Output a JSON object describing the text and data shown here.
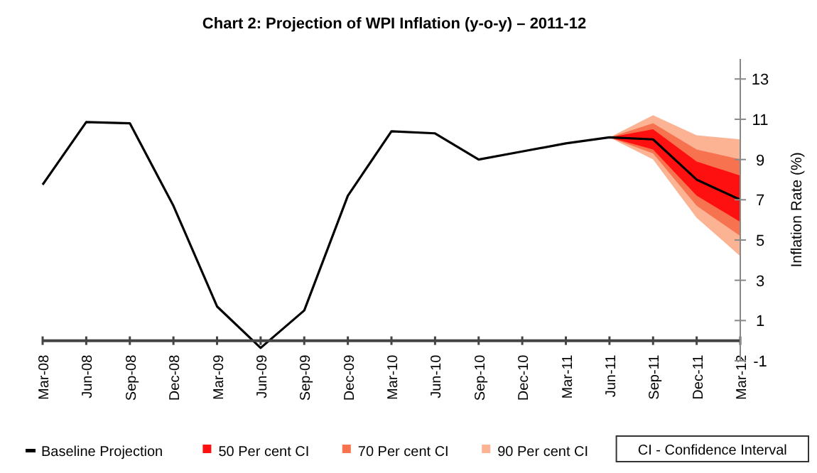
{
  "chart_data": {
    "type": "line",
    "title": "Chart 2: Projection of  WPI Inflation (y-o-y) – 2011-12",
    "ylabel": "Inflation Rate (%)",
    "categories": [
      "Mar-08",
      "Jun-08",
      "Sep-08",
      "Dec-08",
      "Mar-09",
      "Jun-09",
      "Sep-09",
      "Dec-09",
      "Mar-10",
      "Jun-10",
      "Sep-10",
      "Dec-10",
      "Mar-11",
      "Jun-11",
      "Sep-11",
      "Dec-11",
      "Mar-12"
    ],
    "series": [
      {
        "name": "Baseline Projection",
        "color": "#000000",
        "values": [
          7.75,
          10.86,
          10.8,
          6.7,
          1.7,
          -0.36,
          1.5,
          7.2,
          10.4,
          10.3,
          9.0,
          9.4,
          9.8,
          10.1,
          10.0,
          8.0,
          7.0
        ]
      },
      {
        "name": "50 Per cent CI",
        "color": "#ff1010",
        "values": [
          null,
          null,
          null,
          null,
          null,
          null,
          null,
          null,
          null,
          null,
          null,
          null,
          null,
          null,
          null,
          null,
          null
        ],
        "lower": [
          null,
          null,
          null,
          null,
          null,
          null,
          null,
          null,
          null,
          null,
          null,
          null,
          null,
          10.1,
          9.5,
          7.2,
          5.9
        ],
        "upper": [
          null,
          null,
          null,
          null,
          null,
          null,
          null,
          null,
          null,
          null,
          null,
          null,
          null,
          10.1,
          10.5,
          8.9,
          8.2
        ]
      },
      {
        "name": "70 Per cent CI",
        "color": "#f7734f",
        "values": [
          null,
          null,
          null,
          null,
          null,
          null,
          null,
          null,
          null,
          null,
          null,
          null,
          null,
          null,
          null,
          null,
          null
        ],
        "lower": [
          null,
          null,
          null,
          null,
          null,
          null,
          null,
          null,
          null,
          null,
          null,
          null,
          null,
          10.1,
          9.3,
          6.7,
          5.2
        ],
        "upper": [
          null,
          null,
          null,
          null,
          null,
          null,
          null,
          null,
          null,
          null,
          null,
          null,
          null,
          10.1,
          10.8,
          9.5,
          9.0
        ]
      },
      {
        "name": "90 Per cent CI",
        "color": "#fbb394",
        "values": [
          null,
          null,
          null,
          null,
          null,
          null,
          null,
          null,
          null,
          null,
          null,
          null,
          null,
          null,
          null,
          null,
          null
        ],
        "lower": [
          null,
          null,
          null,
          null,
          null,
          null,
          null,
          null,
          null,
          null,
          null,
          null,
          null,
          10.1,
          9.0,
          6.1,
          4.2
        ],
        "upper": [
          null,
          null,
          null,
          null,
          null,
          null,
          null,
          null,
          null,
          null,
          null,
          null,
          null,
          10.1,
          11.2,
          10.2,
          10.0
        ]
      }
    ],
    "ylim": [
      -1,
      14
    ],
    "yticks": [
      -1,
      1,
      3,
      5,
      7,
      9,
      11,
      13
    ],
    "grid": false,
    "legend": "bottom",
    "annotations": [
      "CI - Confidence Interval"
    ]
  }
}
